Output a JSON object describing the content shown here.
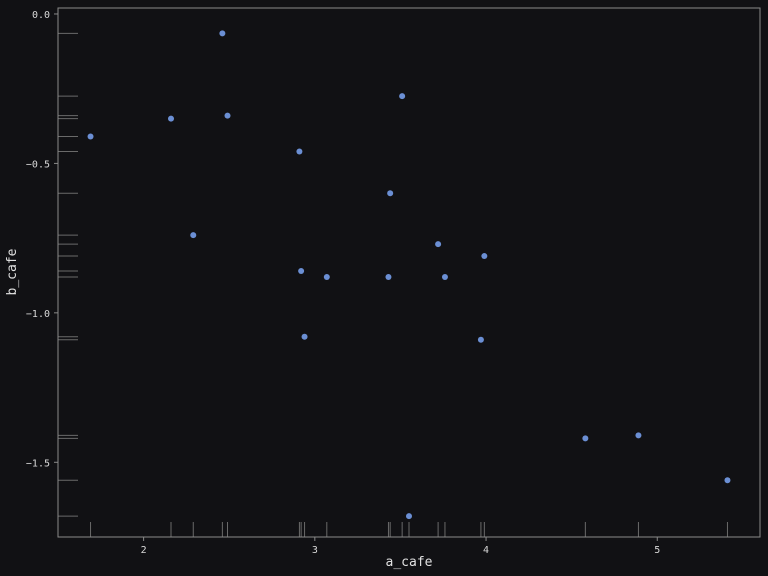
{
  "chart_data": {
    "type": "scatter",
    "xlabel": "a_cafe",
    "ylabel": "b_cafe",
    "xlim": [
      1.5,
      5.6
    ],
    "ylim": [
      -1.75,
      0.02
    ],
    "x_ticks": [
      2,
      3,
      4,
      5
    ],
    "y_ticks": [
      0.0,
      -0.5,
      -1.0,
      -1.5
    ],
    "x_tick_labels": [
      "2",
      "3",
      "4",
      "5"
    ],
    "y_tick_labels": [
      "0.0",
      "−0.5",
      "−1.0",
      "−1.5"
    ],
    "grid": false,
    "rug": true,
    "point_color": "#6b8fd4",
    "rug_color": "#6a6a6a",
    "frame_color": "#8a8a8a",
    "points": [
      {
        "x": 1.69,
        "y": -0.41
      },
      {
        "x": 2.16,
        "y": -0.35
      },
      {
        "x": 2.29,
        "y": -0.74
      },
      {
        "x": 2.46,
        "y": -0.065
      },
      {
        "x": 2.49,
        "y": -0.34
      },
      {
        "x": 2.91,
        "y": -0.46
      },
      {
        "x": 2.92,
        "y": -0.86
      },
      {
        "x": 2.94,
        "y": -1.08
      },
      {
        "x": 3.07,
        "y": -0.88
      },
      {
        "x": 3.43,
        "y": -0.88
      },
      {
        "x": 3.44,
        "y": -0.6
      },
      {
        "x": 3.51,
        "y": -0.275
      },
      {
        "x": 3.55,
        "y": -1.68
      },
      {
        "x": 3.72,
        "y": -0.77
      },
      {
        "x": 3.76,
        "y": -0.88
      },
      {
        "x": 3.97,
        "y": -1.09
      },
      {
        "x": 3.99,
        "y": -0.81
      },
      {
        "x": 4.58,
        "y": -1.42
      },
      {
        "x": 4.89,
        "y": -1.41
      },
      {
        "x": 5.41,
        "y": -1.56
      }
    ]
  }
}
